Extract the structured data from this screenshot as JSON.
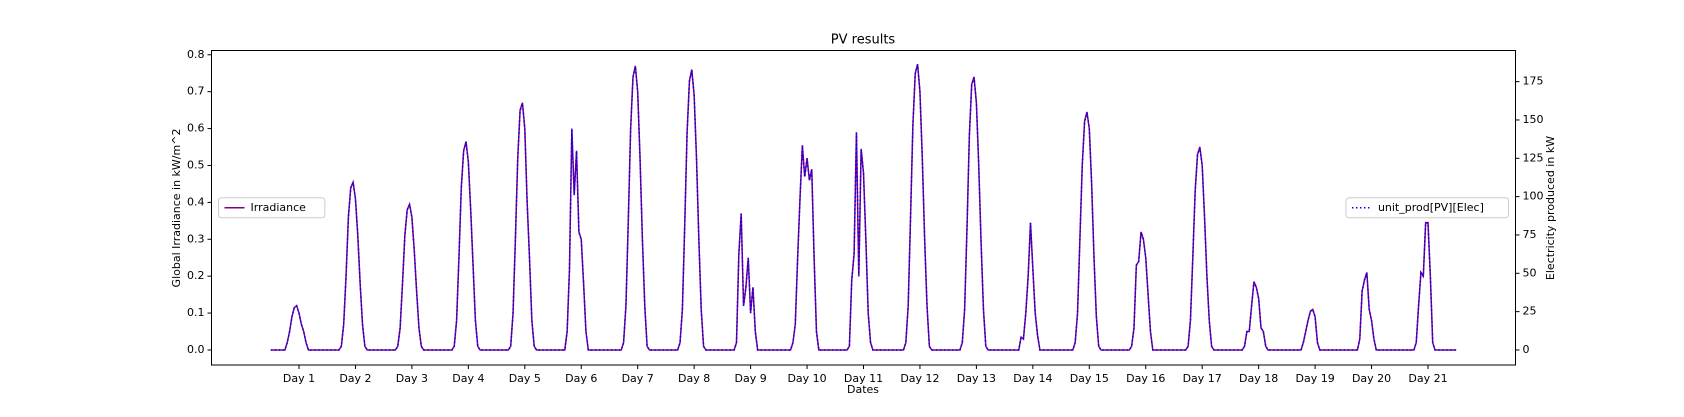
{
  "chart_data": {
    "type": "line",
    "title": "PV results",
    "xlabel": "Dates",
    "ylabel": "Global Irradiance in kW/m^2",
    "y2label": "Electricity produced in kW",
    "x": [
      0,
      5,
      6,
      7,
      8,
      9,
      10,
      11,
      12,
      13,
      14,
      15,
      16,
      17,
      18,
      29,
      30,
      31,
      32,
      33,
      34,
      35,
      36,
      37,
      38,
      39,
      40,
      41,
      42,
      53,
      54,
      55,
      56,
      57,
      58,
      59,
      60,
      61,
      62,
      63,
      64,
      65,
      66,
      77,
      78,
      79,
      80,
      81,
      82,
      83,
      84,
      85,
      86,
      87,
      88,
      89,
      90,
      101,
      102,
      103,
      104,
      105,
      106,
      107,
      108,
      109,
      110,
      111,
      112,
      113,
      114,
      125,
      126,
      127,
      128,
      129,
      130,
      131,
      132,
      133,
      134,
      135,
      136,
      137,
      138,
      149,
      150,
      151,
      152,
      153,
      154,
      155,
      156,
      157,
      158,
      159,
      160,
      161,
      162,
      173,
      174,
      175,
      176,
      177,
      178,
      179,
      180,
      181,
      182,
      183,
      184,
      185,
      186,
      197,
      198,
      199,
      200,
      201,
      202,
      203,
      204,
      205,
      206,
      207,
      208,
      209,
      210,
      221,
      222,
      223,
      224,
      225,
      226,
      227,
      228,
      229,
      230,
      231,
      232,
      233,
      234,
      245,
      246,
      247,
      248,
      249,
      250,
      251,
      252,
      253,
      254,
      255,
      256,
      257,
      258,
      269,
      270,
      271,
      272,
      273,
      274,
      275,
      276,
      277,
      278,
      279,
      280,
      281,
      282,
      293,
      294,
      295,
      296,
      297,
      298,
      299,
      300,
      301,
      302,
      303,
      304,
      305,
      306,
      317,
      318,
      319,
      320,
      321,
      322,
      323,
      324,
      325,
      326,
      327,
      328,
      329,
      330,
      341,
      342,
      343,
      344,
      345,
      346,
      347,
      348,
      349,
      350,
      351,
      352,
      353,
      354,
      365,
      366,
      367,
      368,
      369,
      370,
      371,
      372,
      373,
      374,
      375,
      376,
      377,
      378,
      389,
      390,
      391,
      392,
      393,
      394,
      395,
      396,
      397,
      398,
      399,
      400,
      401,
      402,
      413,
      414,
      415,
      416,
      417,
      418,
      419,
      420,
      421,
      422,
      423,
      424,
      425,
      426,
      437,
      438,
      439,
      440,
      441,
      442,
      443,
      444,
      445,
      446,
      447,
      448,
      449,
      450,
      461,
      462,
      463,
      464,
      465,
      466,
      467,
      468,
      469,
      470,
      471,
      472,
      473,
      474,
      485,
      486,
      487,
      488,
      489,
      490,
      491,
      492,
      493,
      494,
      495,
      496,
      497,
      498,
      504
    ],
    "series": [
      {
        "name": "Irradiance",
        "color": "purple",
        "linestyle": "solid",
        "axis": "y",
        "legend_loc": "center left",
        "values": [
          0,
          0,
          0,
          0.02,
          0.05,
          0.09,
          0.115,
          0.12,
          0.1,
          0.07,
          0.05,
          0.02,
          0,
          0,
          0,
          0,
          0.01,
          0.07,
          0.2,
          0.36,
          0.44,
          0.455,
          0.41,
          0.31,
          0.18,
          0.07,
          0.01,
          0,
          0,
          0,
          0.01,
          0.06,
          0.18,
          0.31,
          0.38,
          0.395,
          0.36,
          0.27,
          0.16,
          0.06,
          0.01,
          0,
          0,
          0,
          0.01,
          0.08,
          0.25,
          0.44,
          0.54,
          0.565,
          0.51,
          0.38,
          0.23,
          0.08,
          0.01,
          0,
          0,
          0,
          0.01,
          0.1,
          0.3,
          0.52,
          0.65,
          0.67,
          0.6,
          0.4,
          0.25,
          0.08,
          0.01,
          0,
          0,
          0,
          0.05,
          0.22,
          0.6,
          0.42,
          0.54,
          0.32,
          0.3,
          0.18,
          0.05,
          0,
          0,
          0,
          0,
          0,
          0.02,
          0.12,
          0.35,
          0.6,
          0.74,
          0.77,
          0.7,
          0.52,
          0.3,
          0.12,
          0.01,
          0,
          0,
          0,
          0.02,
          0.11,
          0.34,
          0.59,
          0.73,
          0.76,
          0.69,
          0.52,
          0.3,
          0.11,
          0.01,
          0,
          0,
          0,
          0.02,
          0.26,
          0.37,
          0.12,
          0.17,
          0.25,
          0.1,
          0.17,
          0.05,
          0,
          0,
          0,
          0,
          0,
          0.02,
          0.07,
          0.25,
          0.41,
          0.555,
          0.47,
          0.52,
          0.46,
          0.49,
          0.25,
          0.05,
          0,
          0,
          0,
          0.01,
          0.19,
          0.26,
          0.59,
          0.2,
          0.545,
          0.48,
          0.3,
          0.1,
          0.02,
          0,
          0,
          0,
          0,
          0.02,
          0.12,
          0.36,
          0.61,
          0.75,
          0.775,
          0.7,
          0.52,
          0.3,
          0.12,
          0.01,
          0,
          0,
          0,
          0.02,
          0.11,
          0.33,
          0.58,
          0.72,
          0.74,
          0.67,
          0.5,
          0.29,
          0.11,
          0.01,
          0,
          0,
          0,
          0,
          0.035,
          0.03,
          0.1,
          0.2,
          0.345,
          0.22,
          0.1,
          0.04,
          0,
          0,
          0,
          0,
          0,
          0.02,
          0.1,
          0.3,
          0.5,
          0.62,
          0.645,
          0.6,
          0.45,
          0.25,
          0.09,
          0.01,
          0,
          0,
          0,
          0.01,
          0.06,
          0.23,
          0.24,
          0.32,
          0.3,
          0.25,
          0.15,
          0.05,
          0,
          0,
          0,
          0,
          0,
          0.01,
          0.08,
          0.25,
          0.43,
          0.53,
          0.55,
          0.5,
          0.36,
          0.2,
          0.08,
          0.01,
          0,
          0,
          0,
          0.01,
          0.05,
          0.05,
          0.12,
          0.185,
          0.17,
          0.14,
          0.06,
          0.05,
          0.01,
          0,
          0,
          0,
          0,
          0,
          0.02,
          0.05,
          0.08,
          0.105,
          0.11,
          0.09,
          0.02,
          0,
          0,
          0,
          0,
          0,
          0,
          0,
          0.03,
          0.16,
          0.19,
          0.21,
          0.11,
          0.08,
          0.03,
          0,
          0,
          0,
          0,
          0,
          0,
          0,
          0.02,
          0.12,
          0.21,
          0.2,
          0.345,
          0.345,
          0.2,
          0.02,
          0,
          0,
          0,
          0,
          0
        ]
      },
      {
        "name": "unit_prod[PV][Elec]",
        "color": "blue",
        "linestyle": "dotted",
        "axis": "y2",
        "legend_loc": "center right",
        "values": [
          0,
          0,
          0,
          4.8,
          12,
          21.6,
          27.6,
          28.8,
          24,
          16.8,
          12,
          4.8,
          0,
          0,
          0,
          0,
          2.4,
          16.8,
          48,
          86.4,
          105.6,
          109.2,
          98.4,
          74.4,
          43.2,
          16.8,
          2.4,
          0,
          0,
          0,
          2.4,
          14.4,
          43.2,
          74.4,
          91.2,
          94.8,
          86.4,
          64.8,
          38.4,
          14.4,
          2.4,
          0,
          0,
          0,
          2.4,
          19.2,
          60,
          105.6,
          129.6,
          135.6,
          122.4,
          91.2,
          55.2,
          19.2,
          2.4,
          0,
          0,
          0,
          2.4,
          24,
          72,
          124.8,
          156,
          160.8,
          144,
          96,
          60,
          19.2,
          2.4,
          0,
          0,
          0,
          12,
          52.8,
          144,
          100.8,
          129.6,
          76.8,
          72,
          43.2,
          12,
          0,
          0,
          0,
          0,
          0,
          4.8,
          28.8,
          84,
          144,
          177.6,
          184.8,
          168,
          124.8,
          72,
          28.8,
          2.4,
          0,
          0,
          0,
          4.8,
          26.4,
          81.6,
          141.6,
          175.2,
          182.4,
          165.6,
          124.8,
          72,
          26.4,
          2.4,
          0,
          0,
          0,
          4.8,
          62.4,
          88.8,
          28.8,
          40.8,
          60,
          24,
          40.8,
          12,
          0,
          0,
          0,
          0,
          0,
          4.8,
          16.8,
          60,
          98.4,
          133.2,
          112.8,
          124.8,
          110.4,
          117.6,
          60,
          12,
          0,
          0,
          0,
          2.4,
          45.6,
          62.4,
          141.6,
          48,
          130.8,
          115.2,
          72,
          24,
          4.8,
          0,
          0,
          0,
          0,
          4.8,
          28.8,
          86.4,
          146.4,
          180,
          186,
          168,
          124.8,
          72,
          28.8,
          2.4,
          0,
          0,
          0,
          4.8,
          26.4,
          79.2,
          139.2,
          172.8,
          177.6,
          160.8,
          120,
          69.6,
          26.4,
          2.4,
          0,
          0,
          0,
          0,
          8.4,
          7.2,
          24,
          48,
          82.8,
          52.8,
          24,
          9.6,
          0,
          0,
          0,
          0,
          0,
          4.8,
          24,
          72,
          120,
          148.8,
          154.8,
          144,
          108,
          60,
          21.6,
          2.4,
          0,
          0,
          0,
          2.4,
          14.4,
          55.2,
          57.6,
          76.8,
          72,
          60,
          36,
          12,
          0,
          0,
          0,
          0,
          0,
          2.4,
          19.2,
          60,
          103.2,
          127.2,
          132,
          120,
          86.4,
          48,
          19.2,
          2.4,
          0,
          0,
          0,
          2.4,
          12,
          12,
          28.8,
          44.4,
          40.8,
          33.6,
          14.4,
          12,
          2.4,
          0,
          0,
          0,
          0,
          0,
          4.8,
          12,
          19.2,
          25.2,
          26.4,
          21.6,
          4.8,
          0,
          0,
          0,
          0,
          0,
          0,
          0,
          7.2,
          38.4,
          45.6,
          50.4,
          26.4,
          19.2,
          7.2,
          0,
          0,
          0,
          0,
          0,
          0,
          0,
          4.8,
          28.8,
          50.4,
          48,
          82.8,
          82.8,
          48,
          4.8,
          0,
          0,
          0,
          0,
          0
        ]
      }
    ],
    "xlim": [
      -25.2,
      529.2
    ],
    "xticks": [
      {
        "value": 12,
        "label": "Day 1"
      },
      {
        "value": 36,
        "label": "Day 2"
      },
      {
        "value": 60,
        "label": "Day 3"
      },
      {
        "value": 84,
        "label": "Day 4"
      },
      {
        "value": 108,
        "label": "Day 5"
      },
      {
        "value": 132,
        "label": "Day 6"
      },
      {
        "value": 156,
        "label": "Day 7"
      },
      {
        "value": 180,
        "label": "Day 8"
      },
      {
        "value": 204,
        "label": "Day 9"
      },
      {
        "value": 228,
        "label": "Day 10"
      },
      {
        "value": 252,
        "label": "Day 11"
      },
      {
        "value": 276,
        "label": "Day 12"
      },
      {
        "value": 300,
        "label": "Day 13"
      },
      {
        "value": 324,
        "label": "Day 14"
      },
      {
        "value": 348,
        "label": "Day 15"
      },
      {
        "value": 372,
        "label": "Day 16"
      },
      {
        "value": 396,
        "label": "Day 17"
      },
      {
        "value": 420,
        "label": "Day 18"
      },
      {
        "value": 444,
        "label": "Day 19"
      },
      {
        "value": 468,
        "label": "Day 20"
      },
      {
        "value": 492,
        "label": "Day 21"
      }
    ],
    "ylim": [
      -0.0407,
      0.8116
    ],
    "yticks": [
      {
        "value": 0,
        "label": "0.0"
      },
      0.1,
      0.2,
      0.3,
      0.4,
      0.5,
      0.6,
      0.7,
      0.8
    ],
    "y2lim": [
      -9.8,
      195.3
    ],
    "y2ticks": [
      0,
      25,
      50,
      75,
      100,
      125,
      150,
      175
    ],
    "grid": false
  }
}
